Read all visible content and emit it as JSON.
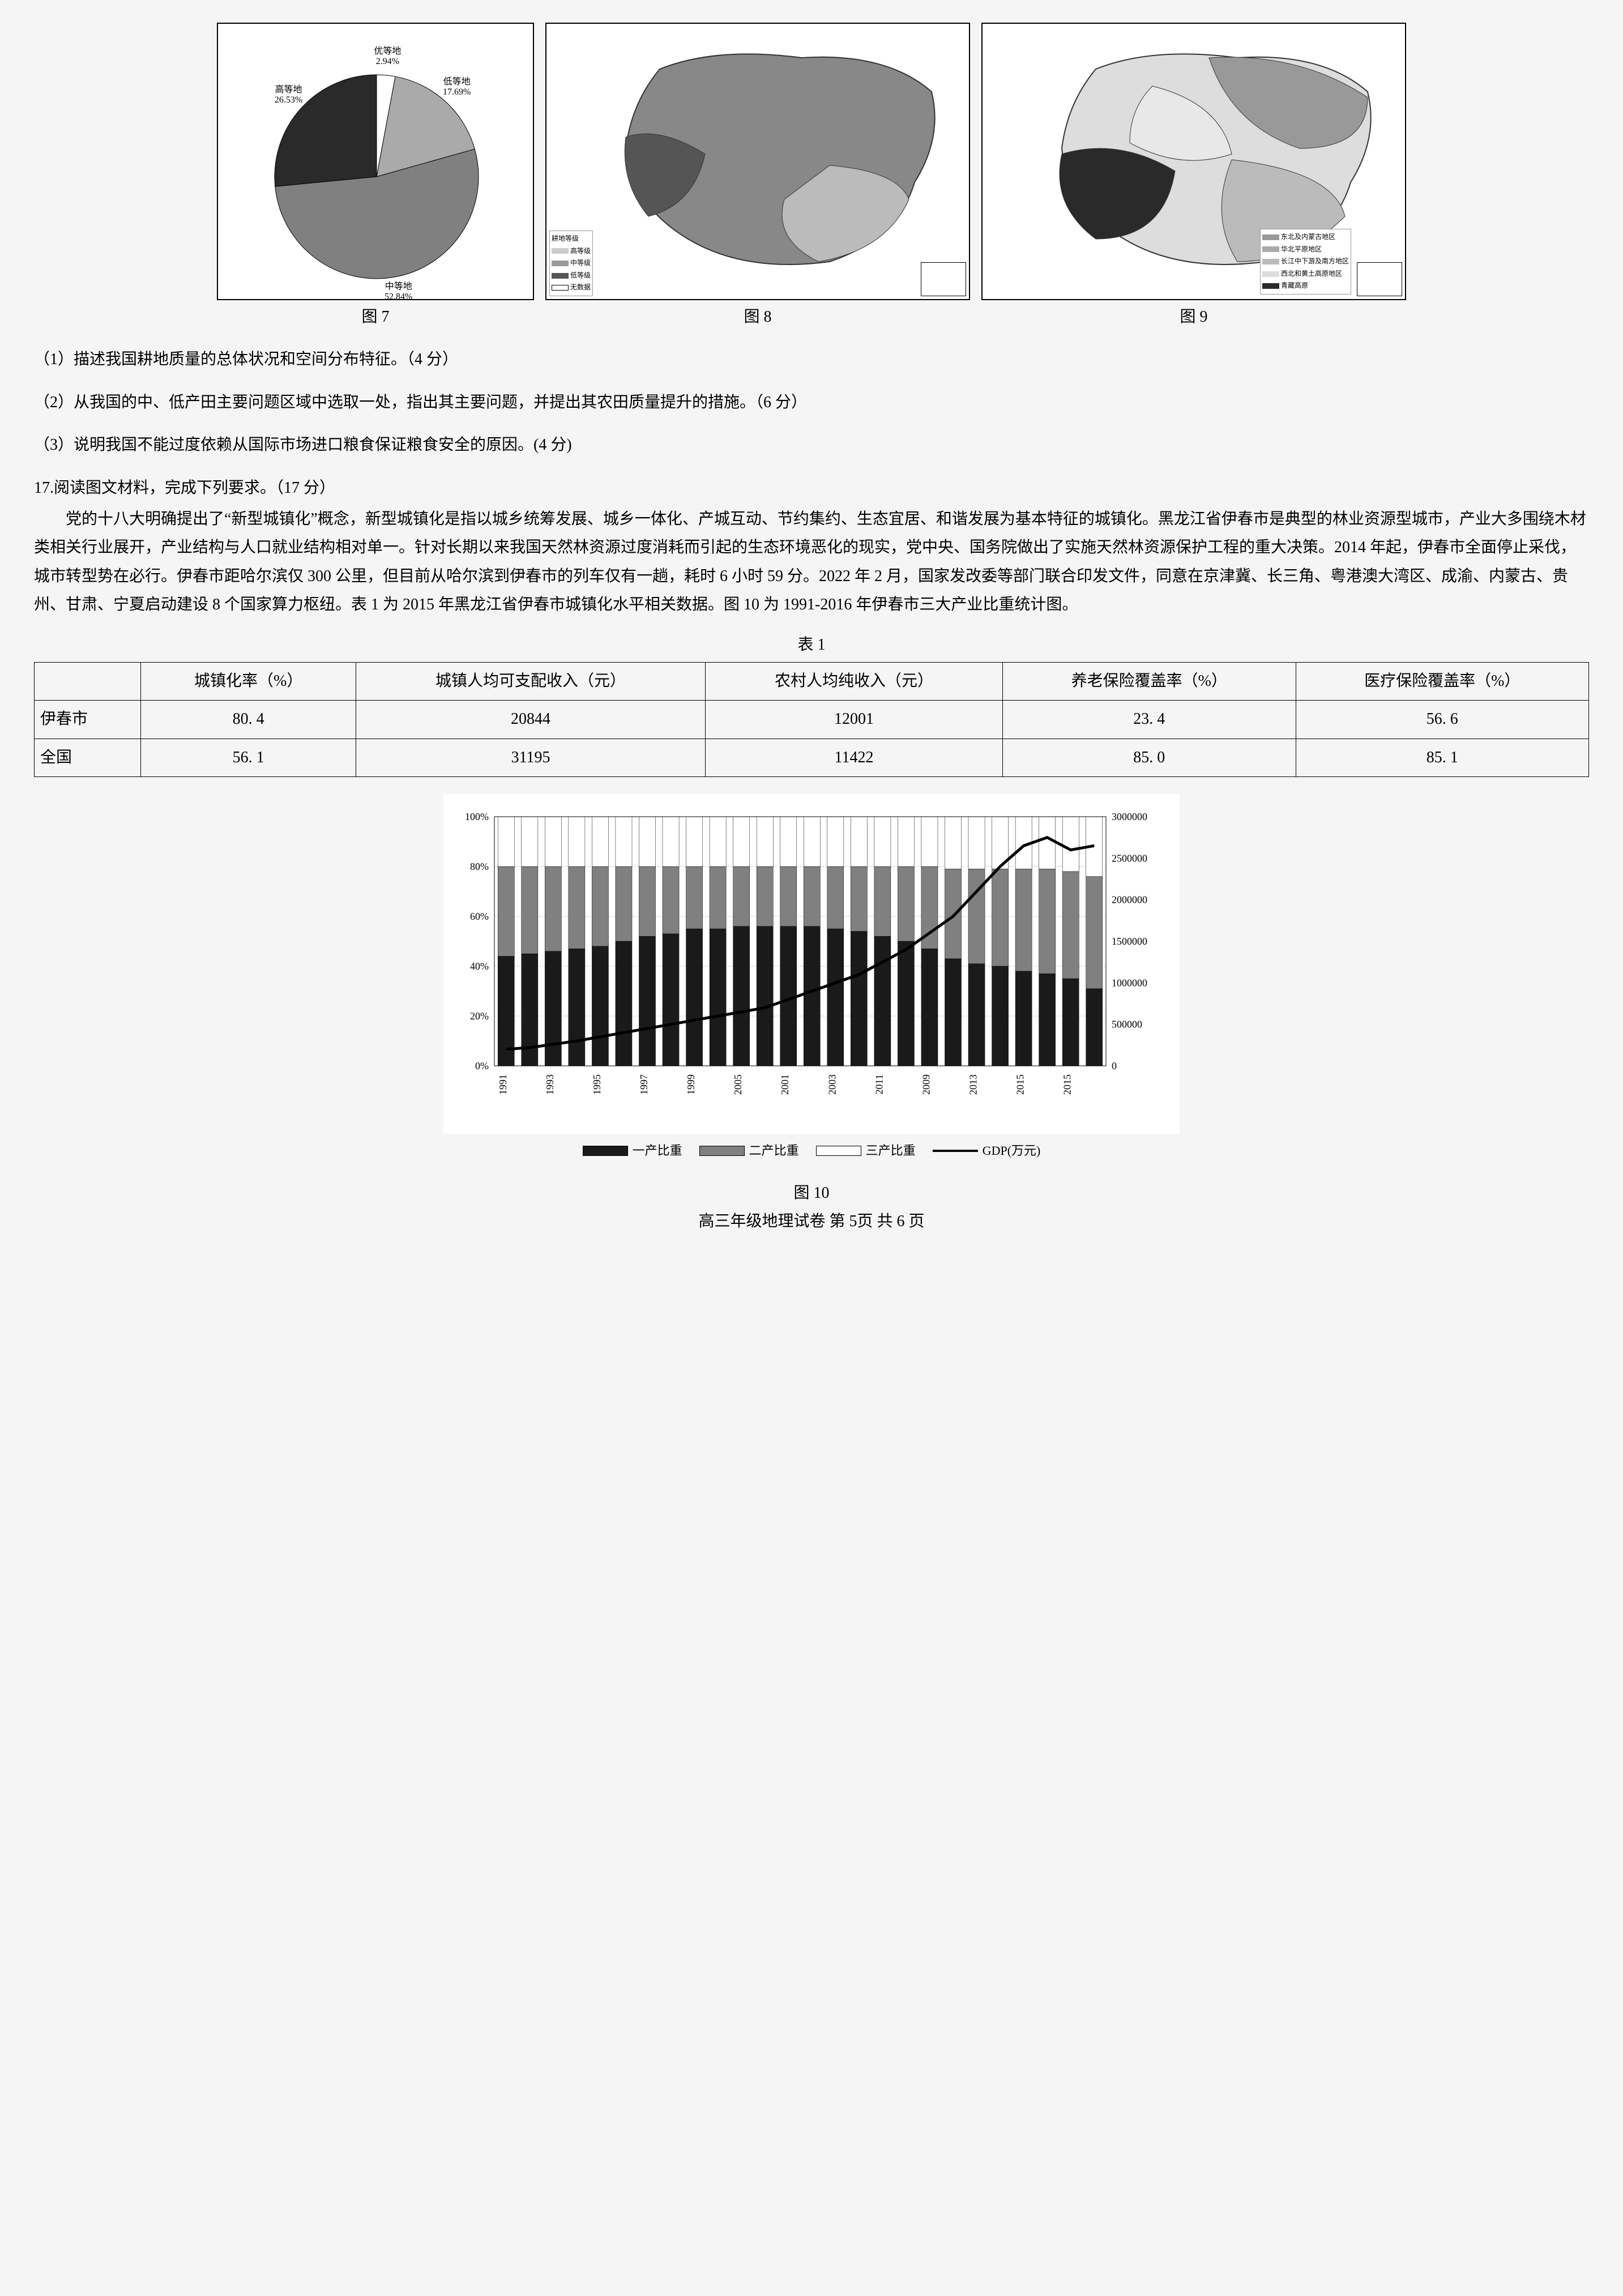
{
  "fig7": {
    "caption": "图 7",
    "type": "pie",
    "slices": [
      {
        "label": "优等地",
        "value": 2.94,
        "pct": "2.94%",
        "color": "#ffffff"
      },
      {
        "label": "低等地",
        "value": 17.69,
        "pct": "17.69%",
        "color": "#aaaaaa"
      },
      {
        "label": "中等地",
        "value": 52.84,
        "pct": "52.84%",
        "color": "#808080"
      },
      {
        "label": "高等地",
        "value": 26.53,
        "pct": "26.53%",
        "color": "#2a2a2a"
      }
    ],
    "background": "#ffffff",
    "label_fontsize": 16
  },
  "fig8": {
    "caption": "图 8",
    "type": "map",
    "legend_title": "耕地等级",
    "legend_items": [
      {
        "label": "高等级",
        "color": "#cccccc",
        "pattern": "grid"
      },
      {
        "label": "中等级",
        "color": "#999999",
        "pattern": "grid"
      },
      {
        "label": "低等级",
        "color": "#555555",
        "pattern": "grid"
      },
      {
        "label": "无数据",
        "color": "#ffffff",
        "pattern": "blank"
      }
    ]
  },
  "fig9": {
    "caption": "图 9",
    "type": "map",
    "legend_items": [
      {
        "label": "东北及内蒙古地区",
        "color": "#888888",
        "pattern": "hatch"
      },
      {
        "label": "华北平原地区",
        "color": "#aaaaaa",
        "pattern": "solid"
      },
      {
        "label": "长江中下游及南方地区",
        "color": "#bbbbbb",
        "pattern": "dots"
      },
      {
        "label": "西北和黄土高原地区",
        "color": "#dddddd",
        "pattern": "light"
      },
      {
        "label": "青藏高原",
        "color": "#2a2a2a",
        "pattern": "solid"
      }
    ]
  },
  "questions": {
    "q1": "（1）描述我国耕地质量的总体状况和空间分布特征。（4 分）",
    "q2": "（2）从我国的中、低产田主要问题区域中选取一处，指出其主要问题，并提出其农田质量提升的措施。（6 分）",
    "q3": "（3）说明我国不能过度依赖从国际市场进口粮食保证粮食安全的原因。(4 分)",
    "q17_head": "17.阅读图文材料，完成下列要求。（17 分）",
    "para": "党的十八大明确提出了“新型城镇化”概念，新型城镇化是指以城乡统筹发展、城乡一体化、产城互动、节约集约、生态宜居、和谐发展为基本特征的城镇化。黑龙江省伊春市是典型的林业资源型城市，产业大多围绕木材类相关行业展开，产业结构与人口就业结构相对单一。针对长期以来我国天然林资源过度消耗而引起的生态环境恶化的现实，党中央、国务院做出了实施天然林资源保护工程的重大决策。2014 年起，伊春市全面停止采伐，城市转型势在必行。伊春市距哈尔滨仅 300 公里，但目前从哈尔滨到伊春市的列车仅有一趟，耗时 6 小时 59 分。2022 年 2 月，国家发改委等部门联合印发文件，同意在京津冀、长三角、粤港澳大湾区、成渝、内蒙古、贵州、甘肃、宁夏启动建设 8 个国家算力枢纽。表 1 为 2015 年黑龙江省伊春市城镇化水平相关数据。图 10 为 1991-2016 年伊春市三大产业比重统计图。"
  },
  "table1": {
    "caption": "表 1",
    "columns": [
      "",
      "城镇化率（%）",
      "城镇人均可支配收入（元）",
      "农村人均纯收入（元）",
      "养老保险覆盖率（%）",
      "医疗保险覆盖率（%）"
    ],
    "rows": [
      [
        "伊春市",
        "80. 4",
        "20844",
        "12001",
        "23. 4",
        "56. 6"
      ],
      [
        "全国",
        "56. 1",
        "31195",
        "11422",
        "85. 0",
        "85. 1"
      ]
    ],
    "border_color": "#000000",
    "fontsize": 28
  },
  "fig10": {
    "caption": "图 10",
    "type": "stacked_bar_line",
    "years": [
      "1991",
      "1993",
      "1995",
      "1997",
      "1999",
      "2005",
      "2001",
      "2003",
      "2011",
      "2009",
      "2013",
      "2015",
      "2015"
    ],
    "y_left": {
      "label": "%",
      "min": 0,
      "max": 100,
      "ticks": [
        "0%",
        "20%",
        "40%",
        "60%",
        "80%",
        "100%"
      ],
      "step": 20
    },
    "y_right": {
      "label": "",
      "min": 0,
      "max": 3000000,
      "ticks": [
        "0",
        "500000",
        "1000000",
        "1500000",
        "2000000",
        "2500000",
        "3000000"
      ],
      "step": 500000
    },
    "series": {
      "primary_pct": [
        44,
        45,
        46,
        47,
        48,
        50,
        52,
        53,
        55,
        55,
        56,
        56,
        56,
        56,
        55,
        54,
        52,
        50,
        47,
        43,
        41,
        40,
        38,
        37,
        35,
        31
      ],
      "secondary_pct": [
        36,
        35,
        34,
        33,
        32,
        30,
        28,
        27,
        25,
        25,
        24,
        24,
        24,
        24,
        25,
        26,
        28,
        30,
        33,
        36,
        38,
        39,
        41,
        42,
        43,
        45
      ],
      "tertiary_pct": [
        20,
        20,
        20,
        20,
        20,
        20,
        20,
        20,
        20,
        20,
        20,
        20,
        20,
        20,
        20,
        20,
        20,
        20,
        20,
        21,
        21,
        21,
        21,
        21,
        22,
        24
      ],
      "gdp": [
        200000,
        220000,
        260000,
        300000,
        350000,
        400000,
        450000,
        500000,
        550000,
        600000,
        650000,
        700000,
        800000,
        900000,
        1000000,
        1100000,
        1250000,
        1400000,
        1600000,
        1800000,
        2100000,
        2400000,
        2650000,
        2750000,
        2600000,
        2650000
      ]
    },
    "colors": {
      "primary": "#1a1a1a",
      "secondary": "#808080",
      "tertiary": "#ffffff",
      "gdp_line": "#000000",
      "grid": "#666666",
      "background": "#ffffff"
    },
    "legend": [
      {
        "label": "一产比重",
        "color": "#1a1a1a"
      },
      {
        "label": "二产比重",
        "color": "#808080"
      },
      {
        "label": "三产比重",
        "color": "#ffffff"
      },
      {
        "label": "GDP(万元)",
        "type": "line",
        "color": "#000000"
      }
    ],
    "bar_count": 26,
    "bar_width": 0.7
  },
  "footer": {
    "line1": "图 10",
    "line2": "高三年级地理试卷  第 5页  共 6 页"
  }
}
